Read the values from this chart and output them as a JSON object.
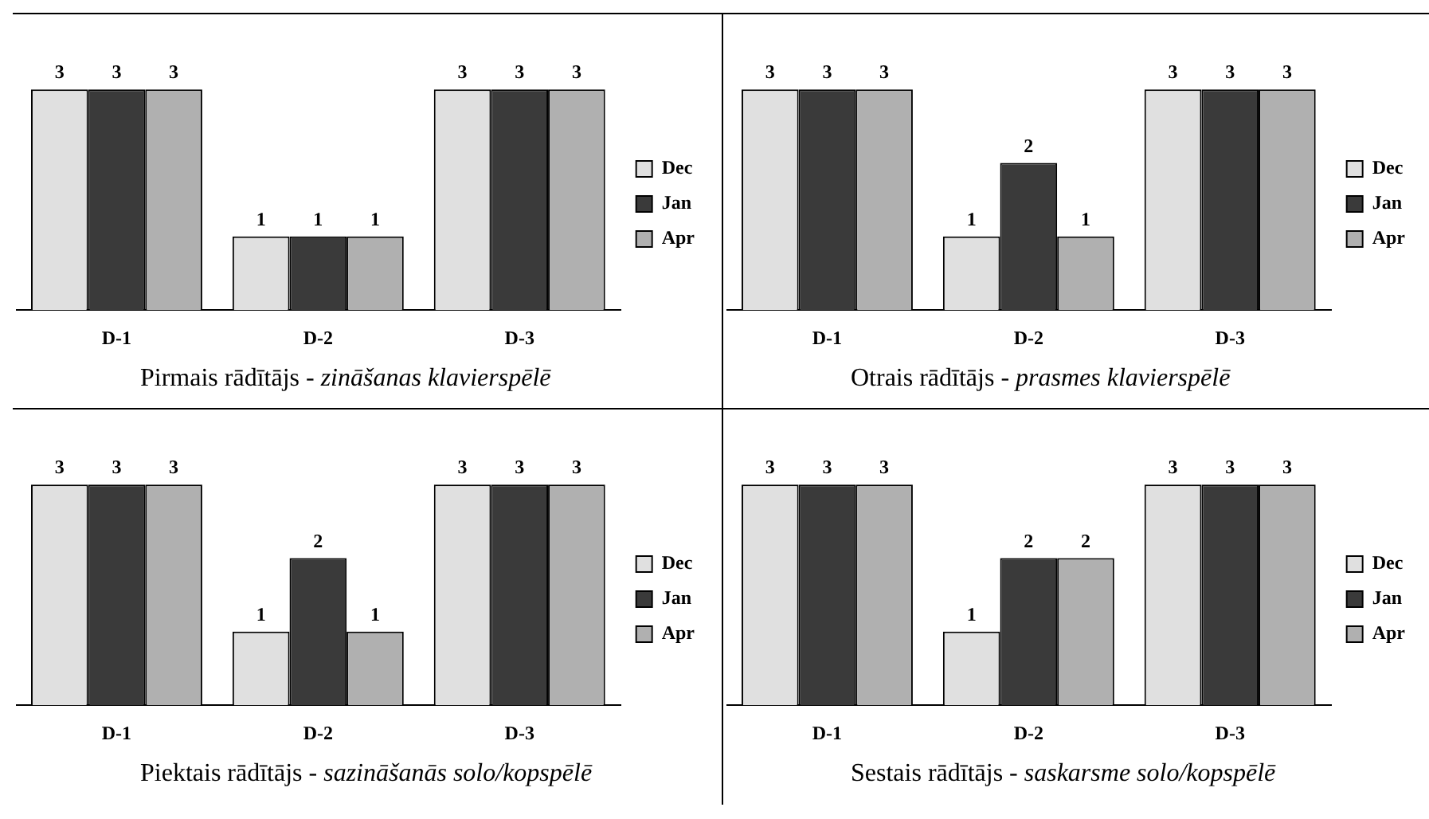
{
  "chart_data": [
    {
      "type": "bar",
      "title": "Pirmais rādītājs - zināšanas klavierspēlē",
      "categories": [
        "D-1",
        "D-2",
        "D-3"
      ],
      "series": [
        {
          "name": "Dec",
          "color": "#e0e0e0",
          "values": [
            3,
            1,
            3
          ]
        },
        {
          "name": "Jan",
          "color": "#3a3a3a",
          "values": [
            3,
            1,
            3
          ]
        },
        {
          "name": "Apr",
          "color": "#b0b0b0",
          "values": [
            3,
            1,
            3
          ]
        }
      ],
      "data_labels": true,
      "legend": "right",
      "tick_labels": "x",
      "grid": false
    },
    {
      "type": "bar",
      "title": "Otrais rādītājs - prasmes klavierspēlē",
      "categories": [
        "D-1",
        "D-2",
        "D-3"
      ],
      "series": [
        {
          "name": "Dec",
          "color": "#e0e0e0",
          "values": [
            3,
            1,
            3
          ]
        },
        {
          "name": "Jan",
          "color": "#3a3a3a",
          "values": [
            3,
            2,
            3
          ]
        },
        {
          "name": "Apr",
          "color": "#b0b0b0",
          "values": [
            3,
            1,
            3
          ]
        }
      ],
      "data_labels": true,
      "legend": "right",
      "tick_labels": "x",
      "grid": false
    },
    {
      "type": "bar",
      "title": "Piektais rādītājs - sazināšanās solo/kopspēlē",
      "categories": [
        "D-1",
        "D-2",
        "D-3"
      ],
      "series": [
        {
          "name": "Dec",
          "color": "#e0e0e0",
          "values": [
            3,
            1,
            3
          ]
        },
        {
          "name": "Jan",
          "color": "#3a3a3a",
          "values": [
            3,
            2,
            3
          ]
        },
        {
          "name": "Apr",
          "color": "#b0b0b0",
          "values": [
            3,
            1,
            3
          ]
        }
      ],
      "data_labels": true,
      "legend": "right",
      "tick_labels": "x",
      "grid": false
    },
    {
      "type": "bar",
      "title": "Sestais rādītājs - saskarsme solo/kopspēlē",
      "categories": [
        "D-1",
        "D-2",
        "D-3"
      ],
      "series": [
        {
          "name": "Dec",
          "color": "#e0e0e0",
          "values": [
            3,
            1,
            3
          ]
        },
        {
          "name": "Jan",
          "color": "#3a3a3a",
          "values": [
            3,
            2,
            3
          ]
        },
        {
          "name": "Apr",
          "color": "#b0b0b0",
          "values": [
            3,
            2,
            3
          ]
        }
      ],
      "data_labels": true,
      "legend": "right",
      "tick_labels": "x",
      "grid": false
    }
  ]
}
